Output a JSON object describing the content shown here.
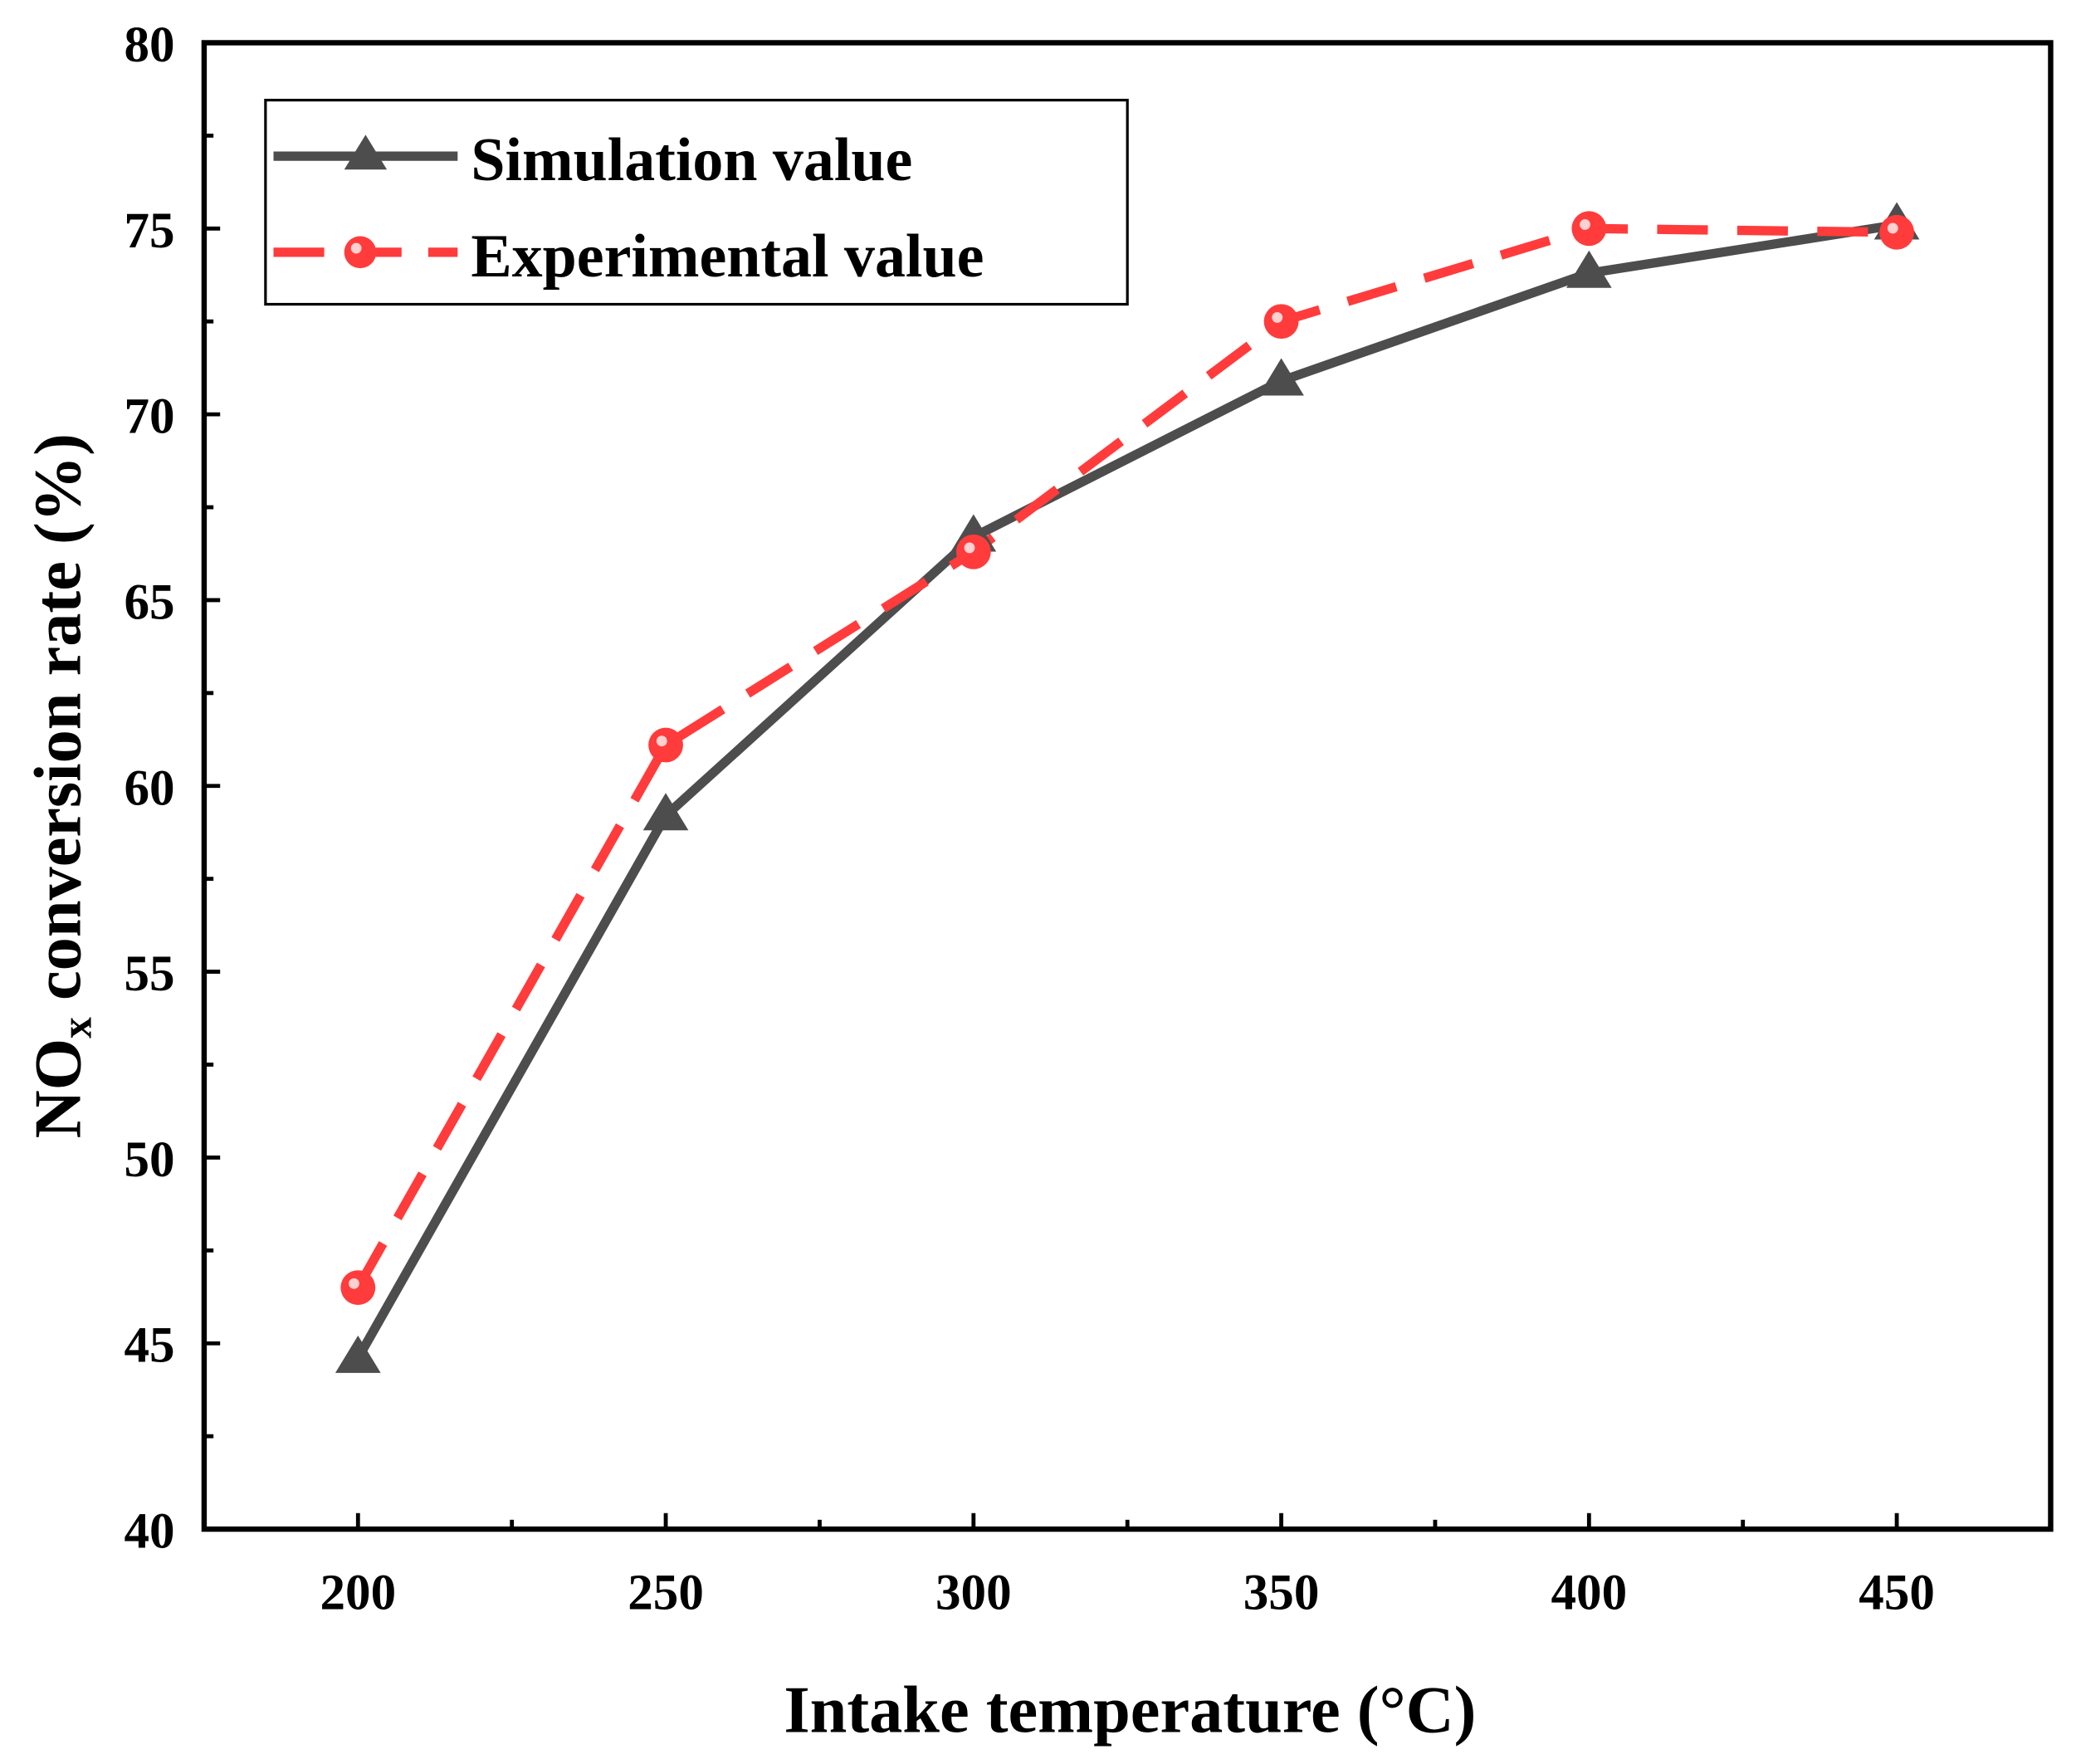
{
  "chart_data": {
    "type": "line",
    "title": "",
    "xlabel": "Intake temperature (°C)",
    "ylabel": "NOx conversion rate (%)",
    "ylabel_main": "NO",
    "ylabel_sub": "x",
    "ylabel_rest": " conversion rate (%)",
    "xlim": [
      175,
      475
    ],
    "ylim": [
      40,
      80
    ],
    "xticks": [
      200,
      250,
      300,
      350,
      400,
      450
    ],
    "yticks": [
      40,
      45,
      50,
      55,
      60,
      65,
      70,
      75,
      80
    ],
    "x": [
      200,
      250,
      300,
      350,
      400,
      450
    ],
    "series": [
      {
        "name": "Simulation value",
        "values": [
          44.6,
          59.2,
          66.7,
          70.9,
          73.8,
          75.1
        ],
        "color": "#4d4d4d",
        "marker": "triangle",
        "dash": "solid"
      },
      {
        "name": "Experimental value",
        "values": [
          46.5,
          61.1,
          66.3,
          72.5,
          75.0,
          74.9
        ],
        "color": "#ff3b3b",
        "marker": "circle",
        "dash": "dashed"
      }
    ],
    "legend": "top-left",
    "grid": false
  }
}
